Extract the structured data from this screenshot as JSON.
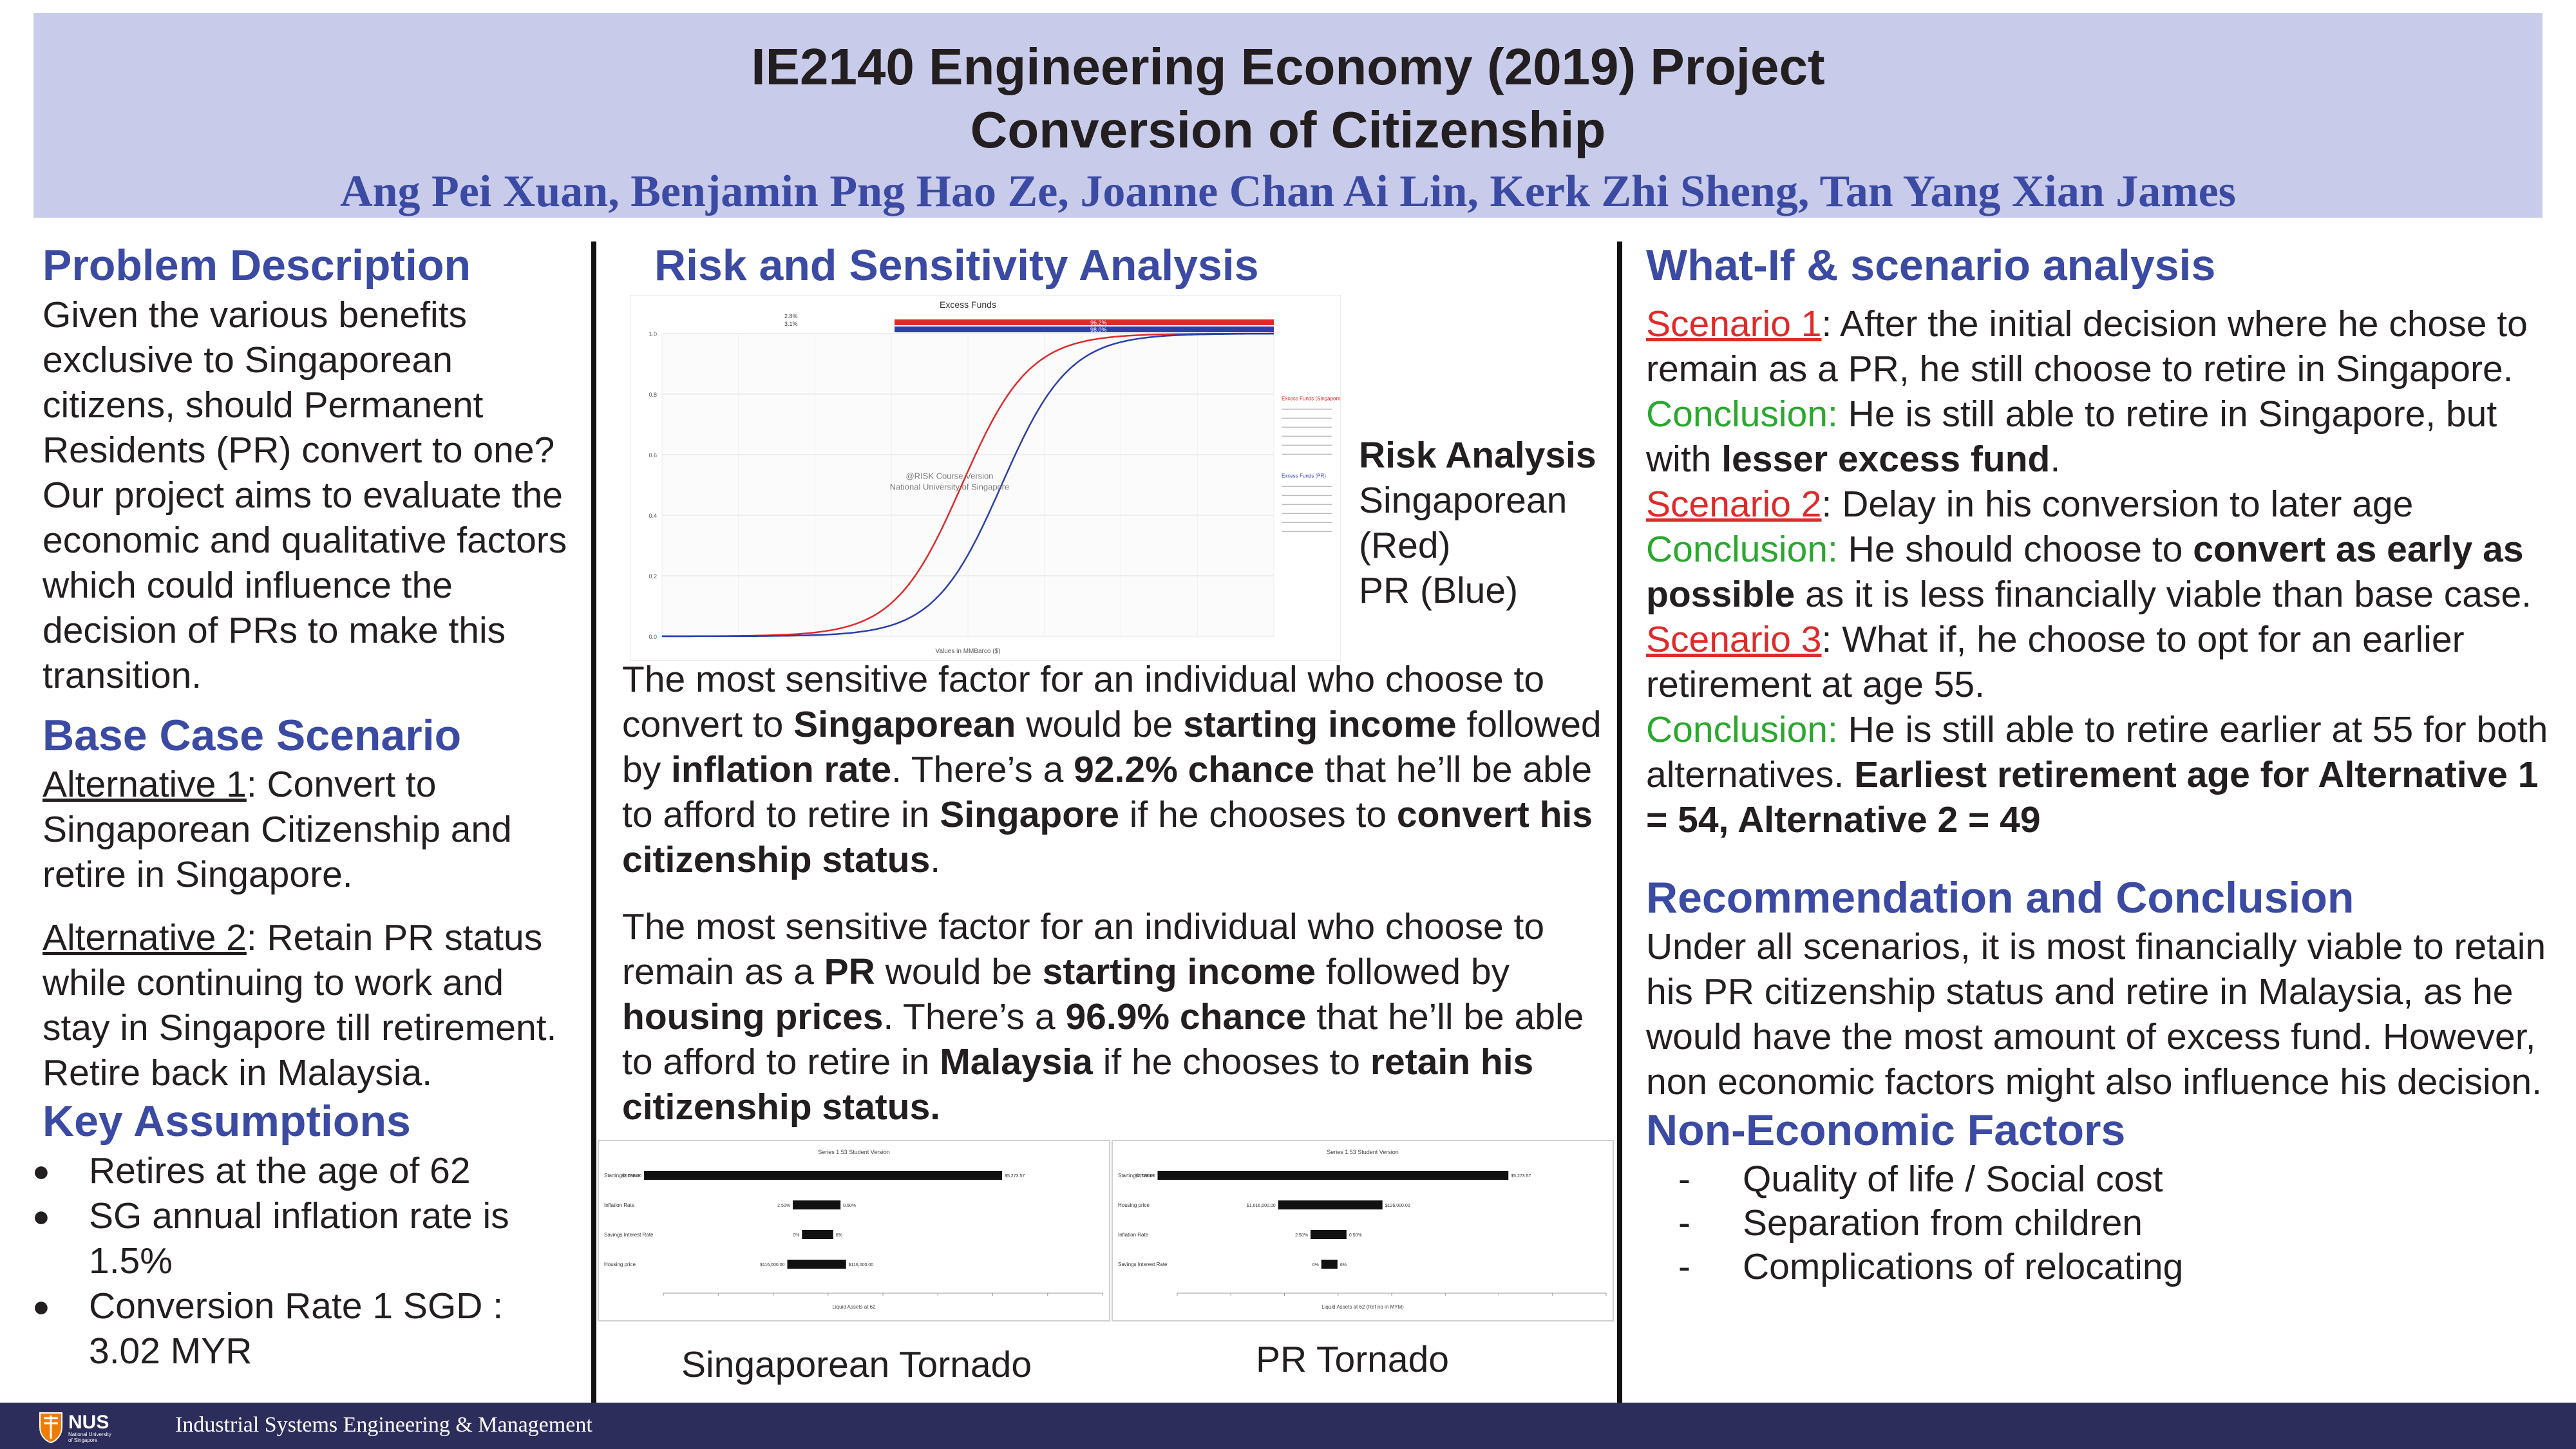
{
  "header": {
    "title_line1": "IE2140 Engineering Economy (2019) Project",
    "title_line2": "Conversion of Citizenship",
    "authors": "Ang Pei Xuan, Benjamin Png Hao Ze, Joanne Chan Ai Lin, Kerk Zhi Sheng, Tan Yang Xian James"
  },
  "left": {
    "problem_heading": "Problem Description",
    "problem_text": "Given the various benefits exclusive to Singaporean citizens, should Permanent Residents (PR) convert to one? Our project aims to evaluate the economic and qualitative factors which could influence the decision of PRs to make this transition.",
    "base_heading": "Base Case Scenario",
    "alt1_label": "Alternative 1",
    "alt1_text": ": Convert to Singaporean Citizenship and retire in Singapore.",
    "alt2_label": "Alternative 2",
    "alt2_text": ": Retain PR status while continuing to work and stay in Singapore till retirement. Retire back in Malaysia.",
    "assumptions_heading": "Key Assumptions",
    "assumptions": [
      "Retires at the age of 62",
      "SG annual inflation rate is 1.5%",
      "Conversion Rate 1 SGD : 3.02 MYR"
    ]
  },
  "middle": {
    "heading": "Risk and Sensitivity Analysis",
    "risk_legend": {
      "title": "Risk Analysis",
      "line1": "Singaporean",
      "line2": "(Red)",
      "line3": "PR (Blue)"
    },
    "p1": {
      "t1": "The most sensitive factor for an individual who choose to convert to ",
      "b1": "Singaporean",
      "t2": " would be ",
      "b2": "starting income",
      "t3": " followed by ",
      "b3": "inflation rate",
      "t4": ". There’s a ",
      "b4": "92.2% chance",
      "t5": " that he’ll be able to afford to retire in ",
      "b5": "Singapore",
      "t6": " if he chooses to ",
      "b6": "convert his citizenship status",
      "t7": "."
    },
    "p2": {
      "t1": "The most sensitive factor for an individual who choose to remain as a ",
      "b1": "PR",
      "t2": " would be ",
      "b2": "starting income",
      "t3": " followed by ",
      "b3": "housing prices",
      "t4": ". There’s a ",
      "b4": "96.9% chance",
      "t5": " that he’ll be able to afford to retire in ",
      "b5": "Malaysia",
      "t6": " if he chooses to ",
      "b6": "retain his citizenship status."
    },
    "caption_sg": "Singaporean Tornado",
    "caption_pr": "PR Tornado"
  },
  "right": {
    "whatif_heading": "What-If & scenario analysis",
    "s1_label": "Scenario 1",
    "s1_text": ": After the initial decision where he chose to remain as a PR, he still choose to retire in Singapore.",
    "c_label": "Conclusion:",
    "c1_t1": " He is still able to retire in Singapore, but with ",
    "c1_b1": "lesser excess fund",
    "c1_t2": ".",
    "s2_label": "Scenario 2",
    "s2_text": ": Delay in his conversion to later age",
    "c2_t1": " He should choose to ",
    "c2_b1": "convert as early as possible",
    "c2_t2": " as it is less financially viable than base case.",
    "s3_label": "Scenario 3",
    "s3_text": ": What if, he choose to opt for an earlier retirement at age 55.",
    "c3_t1": " He is still able to retire earlier at 55 for both alternatives. ",
    "c3_b1": "Earliest retirement age for Alternative 1 = 54, Alternative 2 = 49",
    "rec_heading": "Recommendation and Conclusion",
    "rec_text": "Under all scenarios, it is most financially viable to retain his PR citizenship status and retire in Malaysia, as he would have the most amount of excess fund. However, non economic factors might also influence his decision.",
    "nef_heading": "Non-Economic Factors",
    "nef_items": [
      "Quality of life / Social cost",
      "Separation from children",
      "Complications of relocating"
    ]
  },
  "footer": {
    "logo_text": "NUS",
    "logo_sub": "National University of Singapore",
    "text": "Industrial Systems Engineering & Management"
  },
  "colors": {
    "header_bg": "#c9cbea",
    "heading_blue": "#3b4aa3",
    "scenario_red": "#e02a2a",
    "conclusion_green": "#2aa82e",
    "footer_bg": "#2d2d5c"
  },
  "chart_data": [
    {
      "type": "line",
      "title": "Excess Funds",
      "xlabel": "Values in MMBarco ($)",
      "watermark": "@RISK Course Version\nNational University of Singapore",
      "ylim": [
        0,
        1.0
      ],
      "yticks": [
        0,
        0.2,
        0.4,
        0.6,
        0.8,
        1.0
      ],
      "series": [
        {
          "name": "Excess Funds (Singaporean)",
          "color": "#e02a2a",
          "center": 0.49,
          "spread": 0.055
        },
        {
          "name": "Excess Funds (PR)",
          "color": "#2c3fa8",
          "center": 0.555,
          "spread": 0.055
        }
      ],
      "band_labels": [
        "2.8%",
        "3.1%",
        "96.2%",
        "98.0%"
      ]
    },
    {
      "type": "bar",
      "subtype": "tornado",
      "title": "Series 1.53 Student Version",
      "xlabel": "Liquid Assets at 62",
      "categories": [
        "Starting Income",
        "Inflation Rate",
        "Savings Interest Rate",
        "Housing price"
      ],
      "low": [
        -0.95,
        -0.14,
        -0.09,
        -0.17
      ],
      "high": [
        1.0,
        0.12,
        0.08,
        0.15
      ],
      "low_labels": [
        "$2,788.00",
        "2.50%",
        "0%",
        "$116,000.00"
      ],
      "high_labels": [
        "$5,273.57",
        "0.50%",
        "6%",
        "$116,000.00"
      ]
    },
    {
      "type": "bar",
      "subtype": "tornado",
      "title": "Series 1.53 Student Version",
      "xlabel": "Liquid Assets at 62 (Ref no in MYM)",
      "categories": [
        "Starting Income",
        "Housing price",
        "Inflation Rate",
        "Savings Interest Rate"
      ],
      "low": [
        -0.95,
        -0.28,
        -0.1,
        -0.04
      ],
      "high": [
        1.0,
        0.3,
        0.1,
        0.05
      ],
      "low_labels": [
        "$2,788.00",
        "$1,016,000.00",
        "2.50%",
        "0%"
      ],
      "high_labels": [
        "$5,273.57",
        "$126,000.00",
        "0.50%",
        "6%"
      ]
    }
  ]
}
